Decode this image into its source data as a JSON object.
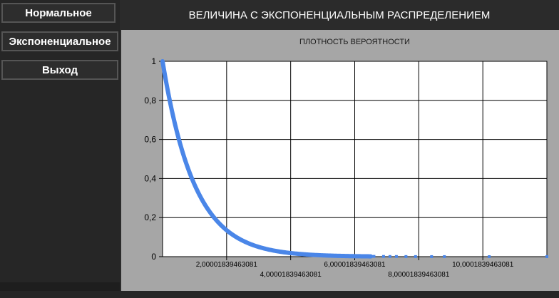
{
  "sidebar": {
    "buttons": [
      {
        "label": "Нормальное"
      },
      {
        "label": "Экспоненциальное"
      },
      {
        "label": "Выход"
      }
    ]
  },
  "header": {
    "title": "ВЕЛИЧИНА С ЭКСПОНЕНЦИАЛЬНЫМ РАСПРЕДЕЛЕНИЕМ"
  },
  "colors": {
    "series": "#4a86e8",
    "plot_bg": "#ffffff",
    "panel_bg": "#a6a6a6",
    "app_bg": "#2b2b2b"
  },
  "chart_data": {
    "type": "scatter",
    "title": "ПЛОТНОСТЬ ВЕРОЯТНОСТИ",
    "xlabel": "",
    "ylabel": "",
    "xlim": [
      0,
      12
    ],
    "ylim": [
      0,
      1
    ],
    "grid": true,
    "x_ticks": [
      {
        "value": 2.00001839463081,
        "label": "2,00001839463081"
      },
      {
        "value": 4.00001839463081,
        "label": "4,00001839463081"
      },
      {
        "value": 6.00001839463081,
        "label": "6,00001839463081"
      },
      {
        "value": 8.00001839463081,
        "label": "8,00001839463081"
      },
      {
        "value": 10.0001839463081,
        "label": "10,0001839463081"
      }
    ],
    "y_ticks": [
      {
        "value": 0,
        "label": "0"
      },
      {
        "value": 0.2,
        "label": "0,2"
      },
      {
        "value": 0.4,
        "label": "0,4"
      },
      {
        "value": 0.6,
        "label": "0,6"
      },
      {
        "value": 0.8,
        "label": "0,8"
      },
      {
        "value": 1,
        "label": "1"
      }
    ],
    "series": [
      {
        "lambda": 1,
        "x": [
          0,
          0.05,
          0.1,
          0.15,
          0.2,
          0.25,
          0.3,
          0.35,
          0.4,
          0.45,
          0.5,
          0.55,
          0.6,
          0.65,
          0.7,
          0.75,
          0.8,
          0.85,
          0.9,
          0.95,
          1.0,
          1.1,
          1.2,
          1.3,
          1.4,
          1.5,
          1.6,
          1.7,
          1.8,
          1.9,
          2.0,
          2.2,
          2.4,
          2.6,
          2.8,
          3.0,
          3.2,
          3.4,
          3.6,
          3.8,
          4.0,
          4.3,
          4.6,
          4.9,
          5.2,
          5.5,
          5.8,
          6.0,
          6.3,
          6.6,
          6.9,
          7.1,
          7.3,
          7.6,
          7.9,
          8.4,
          8.8,
          10.2,
          12.0
        ],
        "y": [
          1.0,
          0.951,
          0.905,
          0.861,
          0.819,
          0.779,
          0.741,
          0.705,
          0.67,
          0.638,
          0.607,
          0.577,
          0.549,
          0.522,
          0.497,
          0.472,
          0.449,
          0.427,
          0.407,
          0.387,
          0.368,
          0.333,
          0.301,
          0.273,
          0.247,
          0.223,
          0.202,
          0.183,
          0.165,
          0.15,
          0.135,
          0.111,
          0.091,
          0.074,
          0.061,
          0.05,
          0.041,
          0.033,
          0.027,
          0.022,
          0.018,
          0.014,
          0.01,
          0.0074,
          0.0055,
          0.0041,
          0.003,
          0.0025,
          0.0018,
          0.0014,
          0.001,
          0.0008,
          0.0007,
          0.0005,
          0.0004,
          0.0002,
          0.0002,
          4e-05,
          6e-06
        ]
      }
    ]
  }
}
